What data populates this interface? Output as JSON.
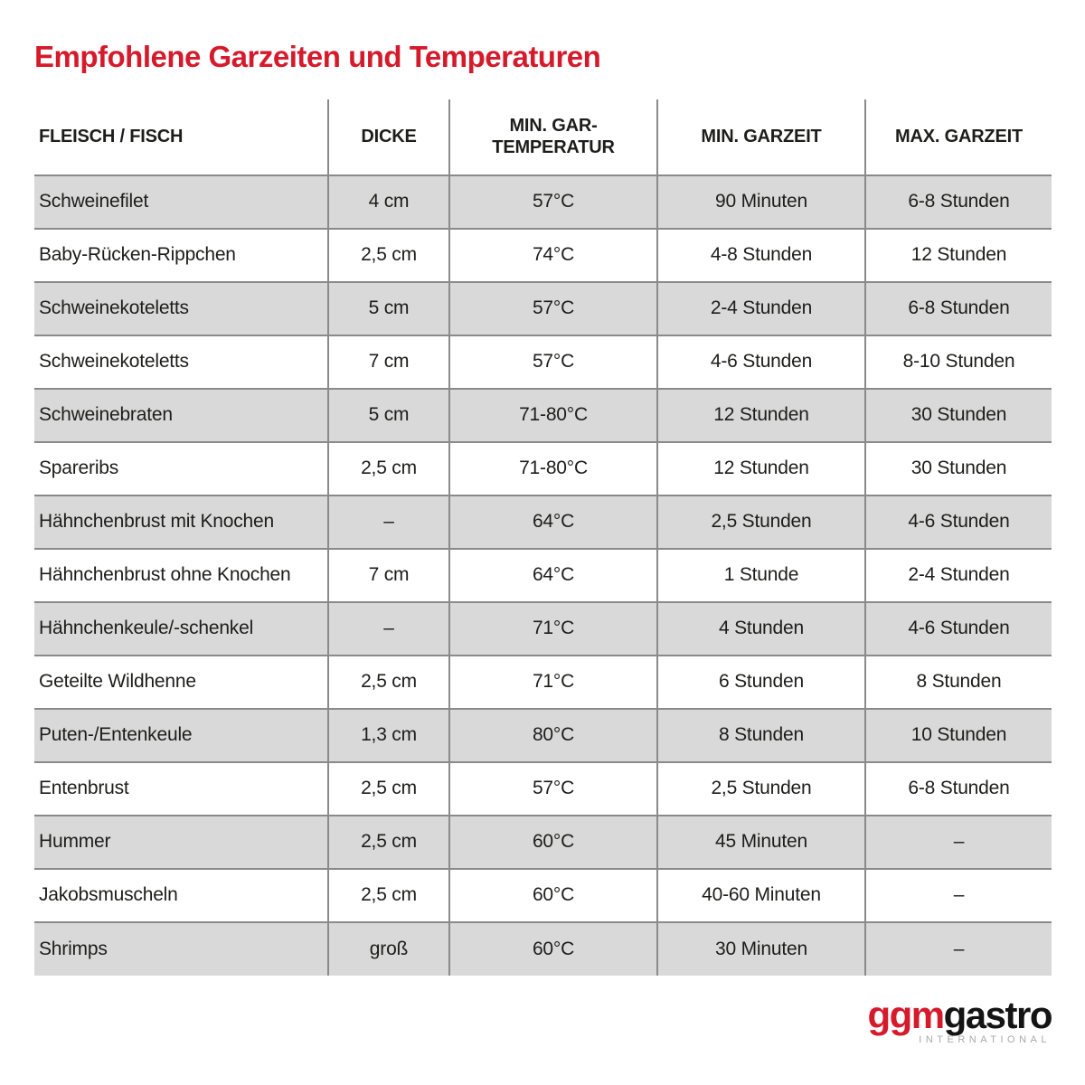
{
  "title": "Empfohlene Garzeiten und Temperaturen",
  "table": {
    "headers": [
      "FLEISCH / FISCH",
      "DICKE",
      "MIN. GAR-TEMPERATUR",
      "MIN. GARZEIT",
      "MAX. GARZEIT"
    ],
    "rows": [
      [
        "Schweinefilet",
        "4 cm",
        "57°C",
        "90 Minuten",
        "6-8 Stunden"
      ],
      [
        "Baby-Rücken-Rippchen",
        "2,5 cm",
        "74°C",
        "4-8 Stunden",
        "12 Stunden"
      ],
      [
        "Schweinekoteletts",
        "5 cm",
        "57°C",
        "2-4 Stunden",
        "6-8 Stunden"
      ],
      [
        "Schweinekoteletts",
        "7 cm",
        "57°C",
        "4-6 Stunden",
        "8-10 Stunden"
      ],
      [
        "Schweinebraten",
        "5 cm",
        "71-80°C",
        "12 Stunden",
        "30 Stunden"
      ],
      [
        "Spareribs",
        "2,5 cm",
        "71-80°C",
        "12 Stunden",
        "30 Stunden"
      ],
      [
        "Hähnchenbrust mit Knochen",
        "–",
        "64°C",
        "2,5 Stunden",
        "4-6 Stunden"
      ],
      [
        "Hähnchenbrust ohne Knochen",
        "7 cm",
        "64°C",
        "1 Stunde",
        "2-4 Stunden"
      ],
      [
        "Hähnchenkeule/-schenkel",
        "–",
        "71°C",
        "4 Stunden",
        "4-6 Stunden"
      ],
      [
        "Geteilte Wildhenne",
        "2,5 cm",
        "71°C",
        "6 Stunden",
        "8 Stunden"
      ],
      [
        "Puten-/Entenkeule",
        "1,3 cm",
        "80°C",
        "8 Stunden",
        "10 Stunden"
      ],
      [
        "Entenbrust",
        "2,5 cm",
        "57°C",
        "2,5 Stunden",
        "6-8 Stunden"
      ],
      [
        "Hummer",
        "2,5 cm",
        "60°C",
        "45 Minuten",
        "–"
      ],
      [
        "Jakobsmuscheln",
        "2,5 cm",
        "60°C",
        "40-60 Minuten",
        "–"
      ],
      [
        "Shrimps",
        "groß",
        "60°C",
        "30 Minuten",
        "–"
      ]
    ]
  },
  "logo": {
    "red_part": "ggm",
    "black_part": "gastro",
    "subtext": "INTERNATIONAL"
  },
  "colors": {
    "accent_red": "#d51a2b",
    "row_gray": "#d9d9d9",
    "divider_gray": "#8a8a8a",
    "text": "#1d1d1b",
    "logo_sub_gray": "#a9a9a9"
  }
}
